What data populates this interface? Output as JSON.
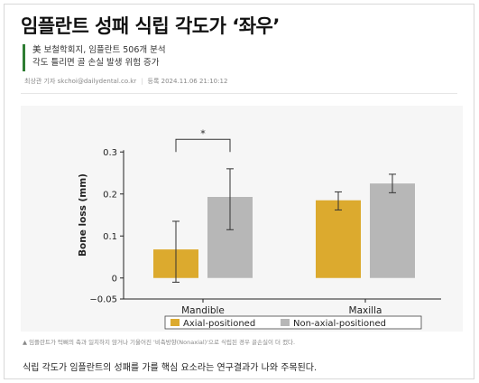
{
  "article": {
    "headline": "임플란트 성패 식립 각도가 ‘좌우’",
    "subtitles": [
      "美 보철학회지, 임플란트 506개 분석",
      "각도 틀리면 골 손실 발생 위험 증가"
    ],
    "byline": {
      "author": "최상관 기자 skchoi@dailydental.co.kr",
      "date_label": "등록 2024.11.06 21:10:12"
    },
    "caption": "▲ 임플란트가 턱뼈의 축과 일치하지 않거나 기울어진 '비축방향(Nonaxial)'으로 식립된 경우 골손실이 더 컸다.",
    "body": "식립 각도가 임플란트의 성패를 가를 핵심 요소라는 연구결과가 나와 주목된다."
  },
  "colors": {
    "accent_green": "#2e7d32",
    "axial": "#dcaa2e",
    "non_axial": "#b7b7b7"
  },
  "chart_data": {
    "type": "bar",
    "ylabel": "Bone loss (mm)",
    "xlabel": "",
    "categories": [
      "Mandible",
      "Maxilla"
    ],
    "series": [
      {
        "name": "Axial-positioned",
        "color": "#dcaa2e",
        "values": [
          0.068,
          0.185
        ],
        "error": [
          [
            -0.01,
            0.135
          ],
          [
            0.162,
            0.205
          ]
        ]
      },
      {
        "name": "Non-axial-positioned",
        "color": "#b7b7b7",
        "values": [
          0.193,
          0.225
        ],
        "error": [
          [
            0.115,
            0.26
          ],
          [
            0.203,
            0.247
          ]
        ]
      }
    ],
    "ylim": [
      -0.05,
      0.35
    ],
    "yticks": [
      -0.05,
      0,
      0.1,
      0.2,
      0.3
    ],
    "ytick_labels": [
      "−0.05",
      "0",
      "0.1",
      "0.2",
      "0.3"
    ],
    "significance": {
      "category": "Mandible",
      "label": "*"
    },
    "legend_position": "bottom",
    "grid": false
  }
}
